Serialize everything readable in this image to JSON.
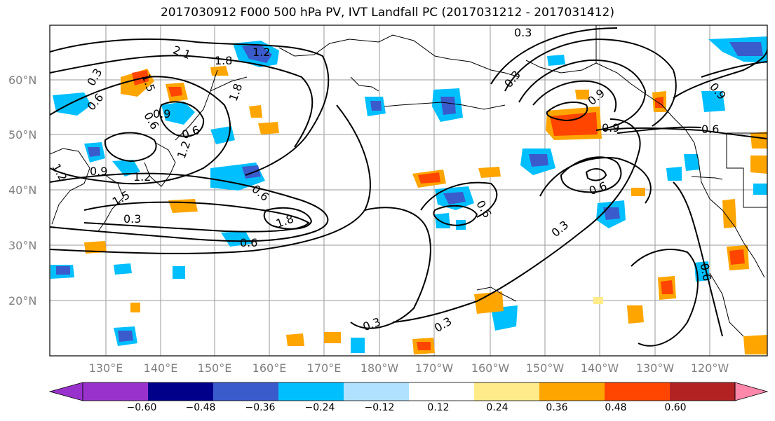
{
  "title": "2017030912 F000 500 hPa PV, IVT Landfall PC (2017031212 - 2017031412)",
  "lat_labels": [
    "60°N",
    "50°N",
    "40°N",
    "30°N",
    "20°N"
  ],
  "lon_labels": [
    "130°E",
    "140°E",
    "150°E",
    "160°E",
    "170°E",
    "180°W",
    "170°W",
    "160°W",
    "150°W",
    "140°W",
    "130°W",
    "120°W"
  ],
  "colorbar": {
    "colors": [
      "#9932cc",
      "#00008b",
      "#3a5bcc",
      "#00bfff",
      "#b0e2ff",
      "#ffffff",
      "#ffeb8a",
      "#ffa500",
      "#ff4500",
      "#b22222",
      "#ff88aa"
    ],
    "tick_labels": [
      "−0.60",
      "−0.48",
      "−0.36",
      "−0.24",
      "−0.12",
      "0.12",
      "0.24",
      "0.36",
      "0.48",
      "0.60"
    ]
  },
  "contour_labels": [
    "0.3",
    "2.1",
    "1.8",
    "1.2",
    "1.5",
    "0.6",
    "0.3",
    "0.6",
    "0.9",
    "0.6",
    "1.2",
    "0.9",
    "1.2",
    "1.5",
    "0.6",
    "1.8",
    "0.6",
    "1.2",
    "0.3",
    "1.8",
    "0.9",
    "0.6",
    "0.9",
    "0.6",
    "0.3",
    "0.6",
    "0.9",
    "0.3",
    "0.3",
    "0.3",
    "0.6"
  ]
}
